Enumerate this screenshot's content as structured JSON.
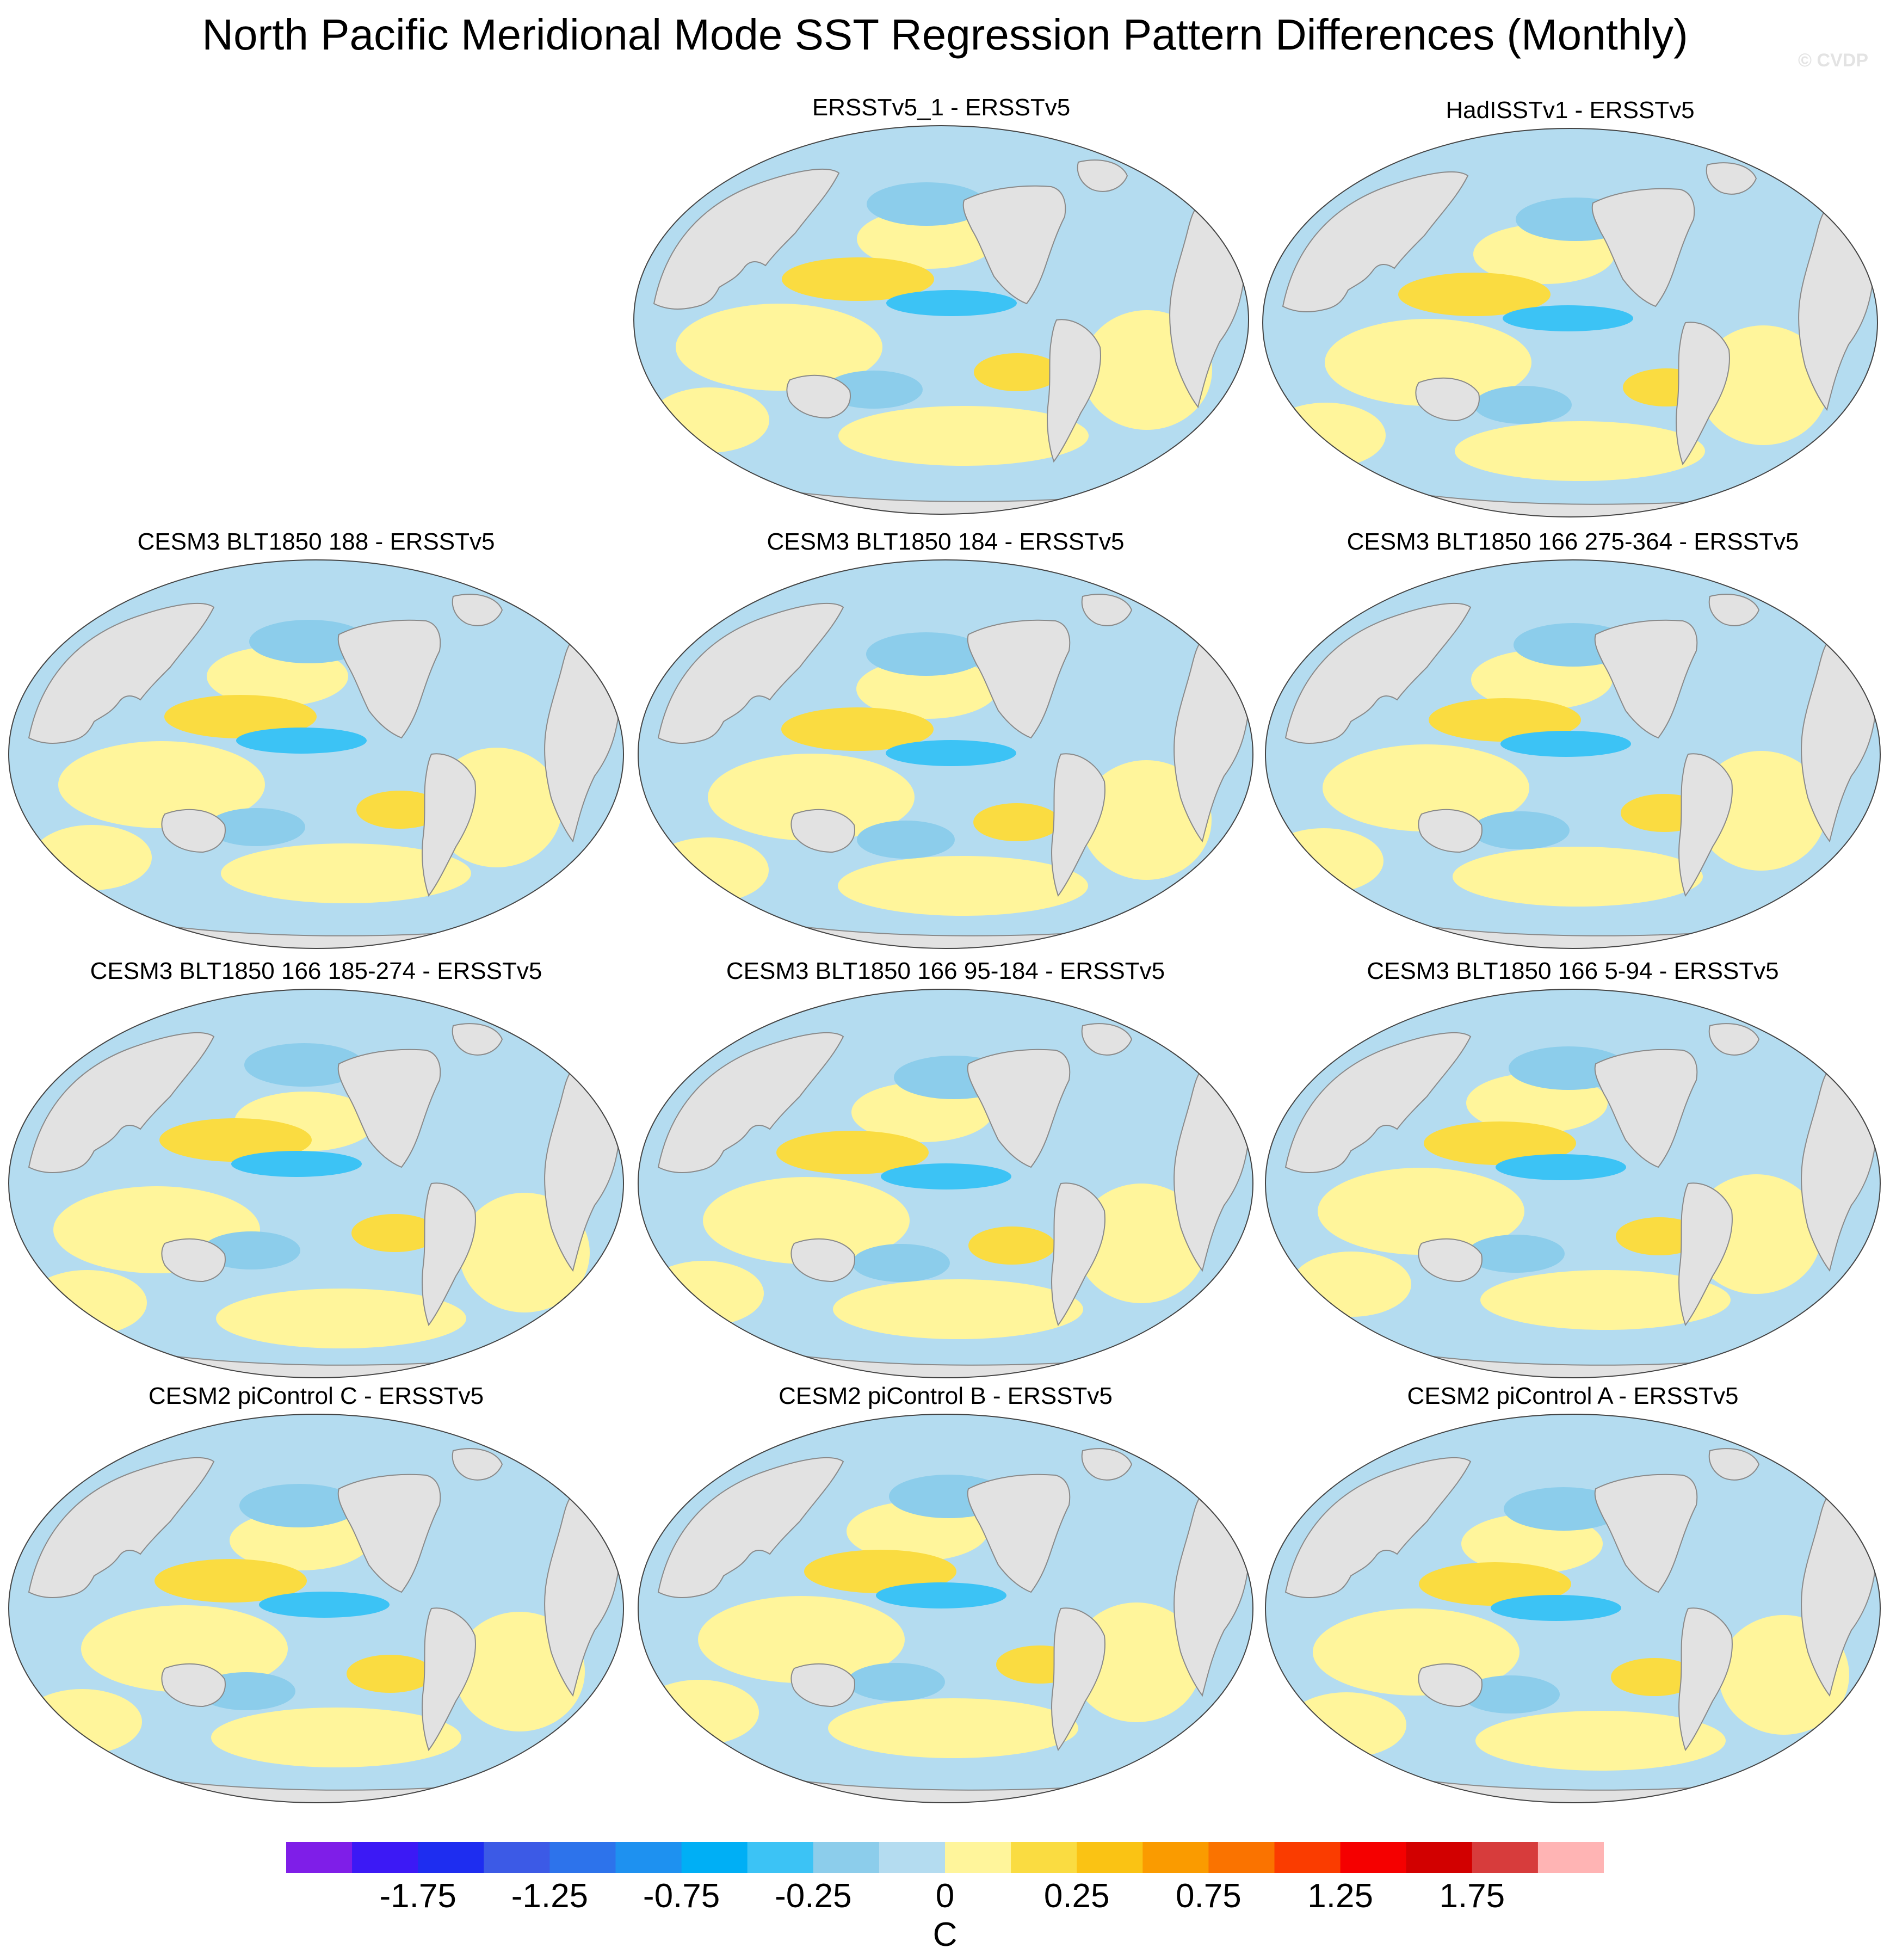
{
  "figure": {
    "title": "North Pacific Meridional Mode SST Regression Pattern Differences (Monthly)",
    "credit": "© CVDP"
  },
  "panels": [
    {
      "title": "ERSSTv5_1 - ERSSTv5"
    },
    {
      "title": "HadISSTv1 - ERSSTv5"
    },
    {
      "title": "CESM3 BLT1850 188 - ERSSTv5"
    },
    {
      "title": "CESM3 BLT1850 184 - ERSSTv5"
    },
    {
      "title": "CESM3 BLT1850 166 275-364 - ERSSTv5"
    },
    {
      "title": "CESM3 BLT1850 166 185-274 - ERSSTv5"
    },
    {
      "title": "CESM3 BLT1850 166 95-184 - ERSSTv5"
    },
    {
      "title": "CESM3 BLT1850 166 5-94 - ERSSTv5"
    },
    {
      "title": "CESM2 piControl C - ERSSTv5"
    },
    {
      "title": "CESM2 piControl B - ERSSTv5"
    },
    {
      "title": "CESM2 piControl A - ERSSTv5"
    }
  ],
  "colorbar": {
    "units": "C",
    "tick_labels": [
      "-1.75",
      "-1.25",
      "-0.75",
      "-0.25",
      "0",
      "0.25",
      "0.75",
      "1.25",
      "1.75"
    ],
    "colors": [
      "#7f1ee8",
      "#3c19f5",
      "#1e2df0",
      "#3c5ae6",
      "#2d73eb",
      "#1e91f0",
      "#00aff5",
      "#3cc3f5",
      "#8ccdeb",
      "#b4dcf0",
      "#fff59b",
      "#fadc41",
      "#fac314",
      "#fa9b00",
      "#fa7300",
      "#fa3c00",
      "#f50000",
      "#d20000",
      "#d73c3c",
      "#ffb4b4"
    ]
  },
  "map_colors": {
    "land": "#e2e2e2",
    "coast": "#8a8a8a",
    "ocean_base": "#b4dcf0",
    "pos_small": "#fff59b",
    "pos_mid": "#fadc41",
    "neg_mid": "#8ccdeb",
    "neg_strong": "#3cc3f5"
  }
}
